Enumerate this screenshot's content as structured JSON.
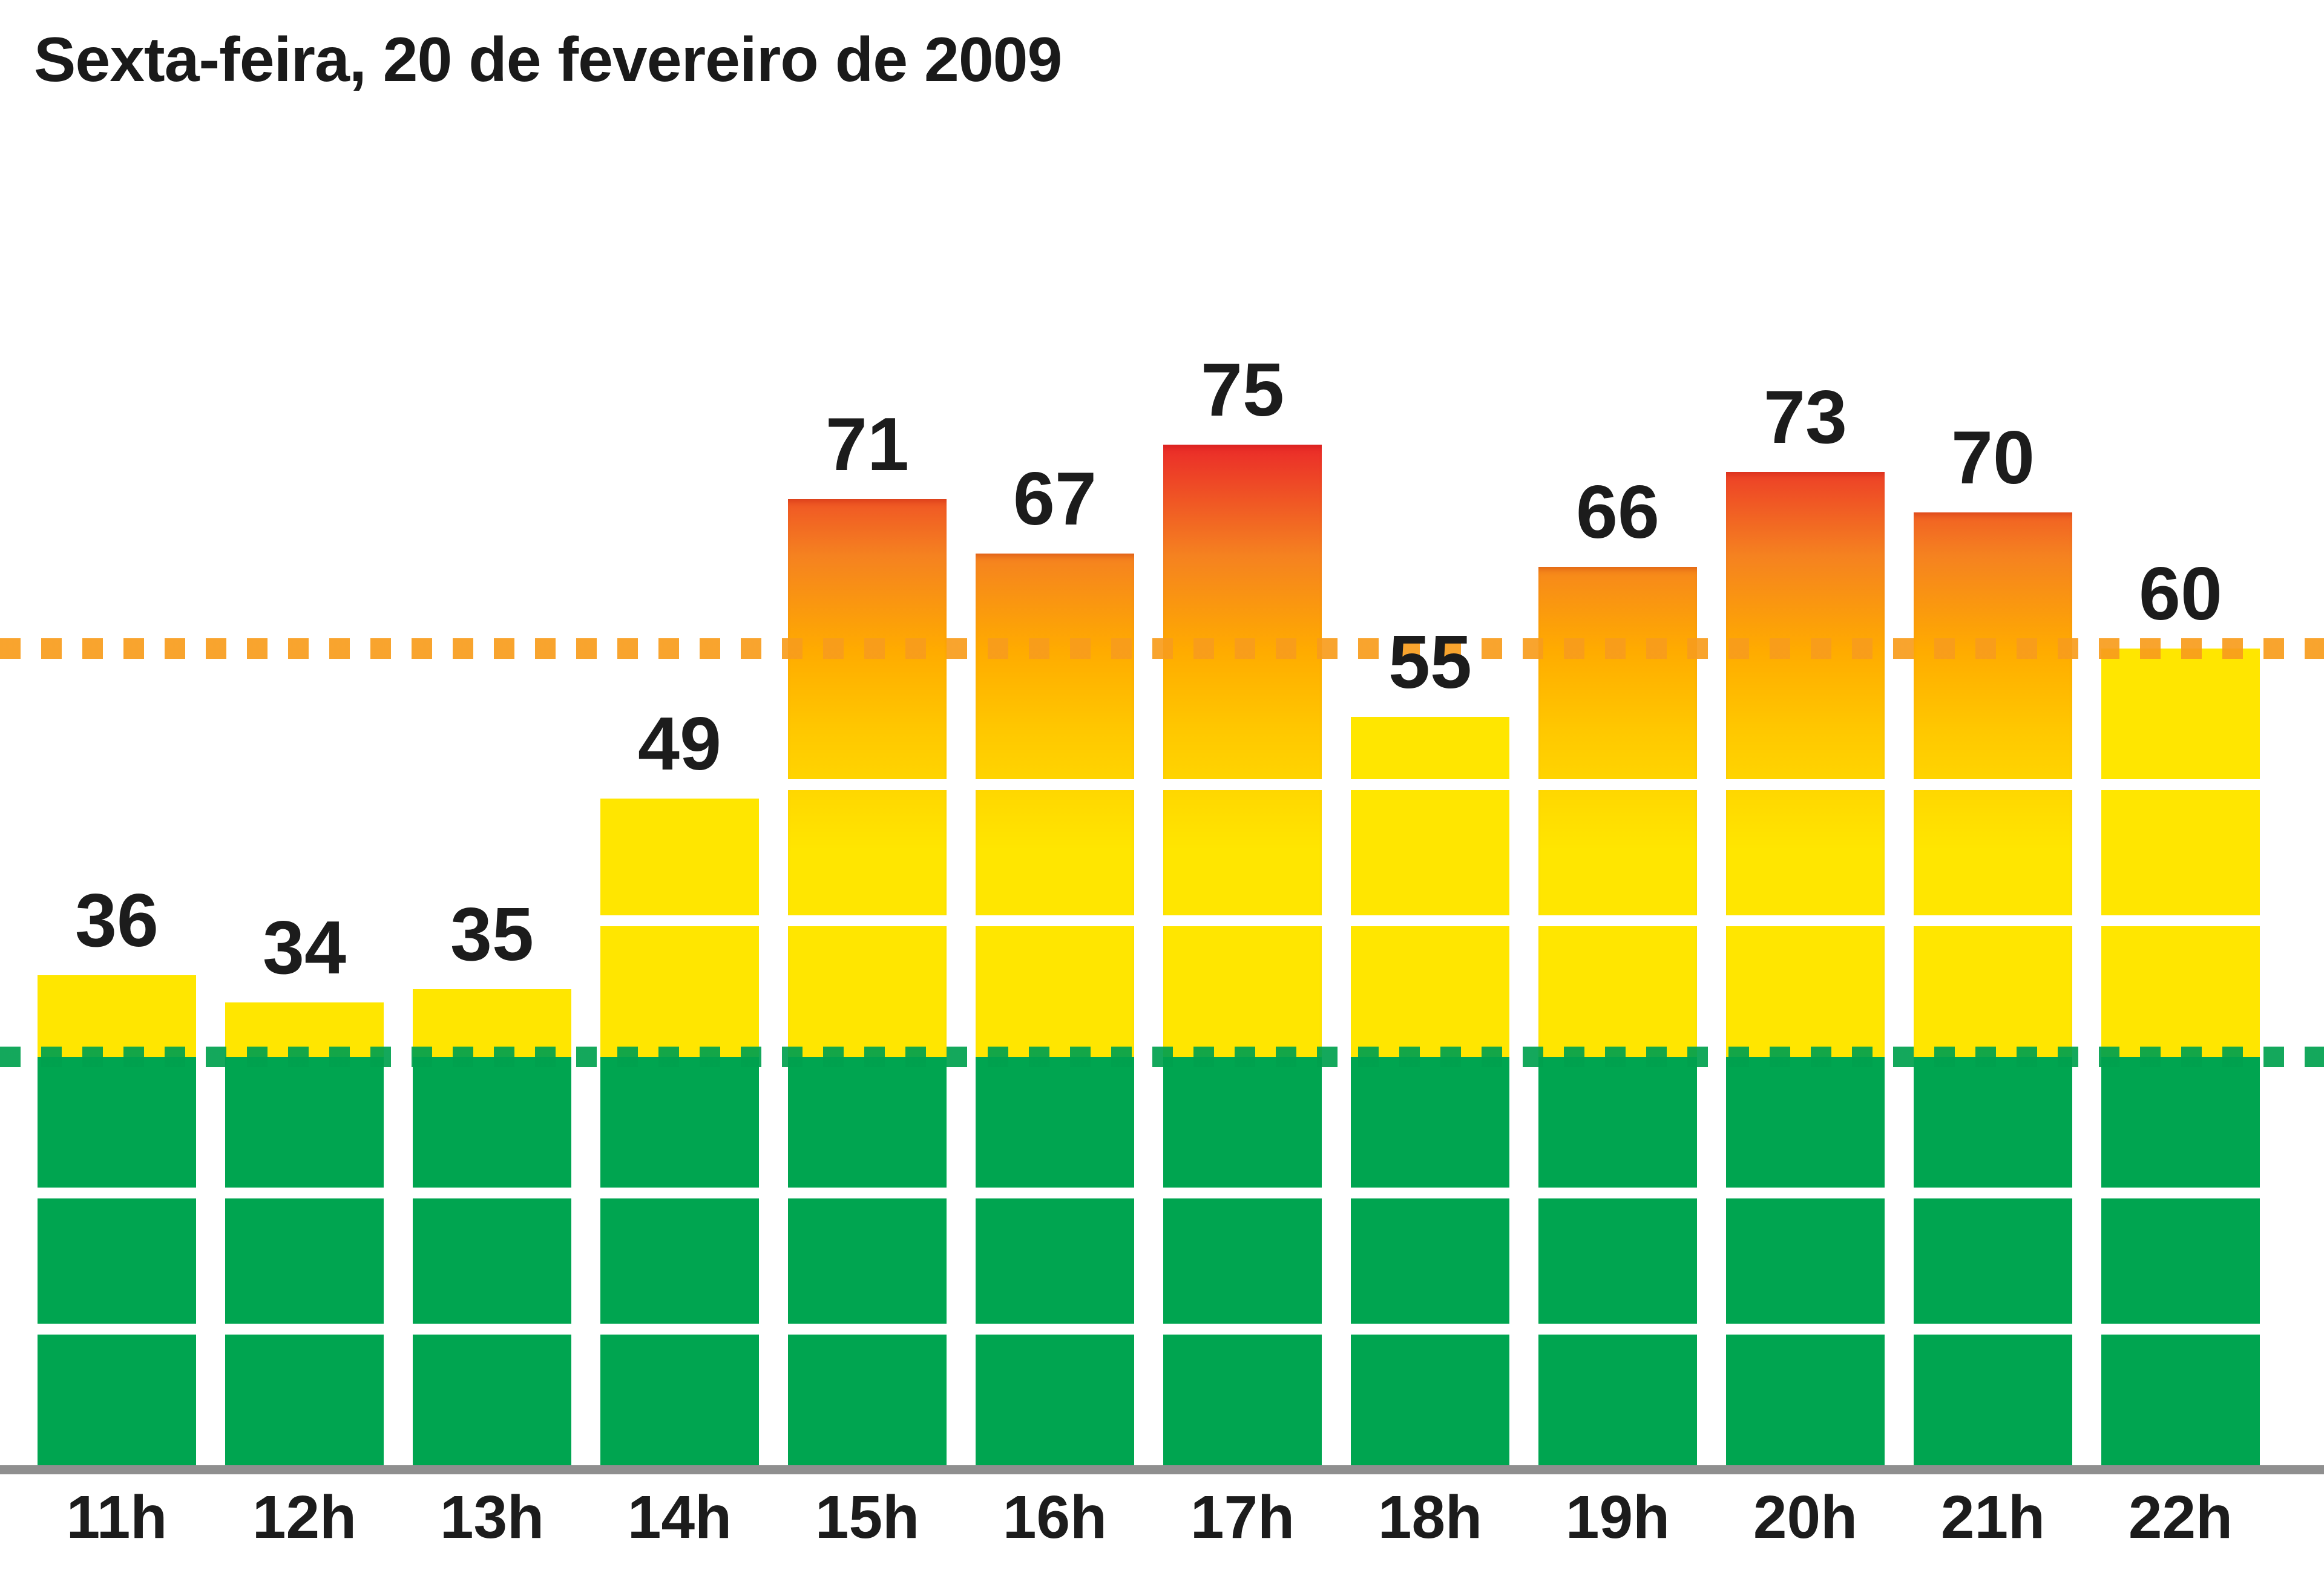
{
  "title": "Sexta-feira, 20 de fevereiro de 2009",
  "chart_data": {
    "type": "bar",
    "title": "Sexta-feira, 20 de fevereiro de 2009",
    "categories": [
      "11h",
      "12h",
      "13h",
      "14h",
      "15h",
      "16h",
      "17h",
      "18h",
      "19h",
      "20h",
      "21h",
      "22h"
    ],
    "values": [
      36,
      34,
      35,
      49,
      71,
      67,
      75,
      55,
      66,
      73,
      70,
      60
    ],
    "xlabel": "",
    "ylabel": "",
    "ylim": [
      0,
      76
    ],
    "grid": "white lines inside bars every 10 units",
    "gridlines": [
      10,
      20,
      40,
      50
    ],
    "legend_position": "none",
    "value_labels_shown": true,
    "thresholds": {
      "green_dotted_line": 30,
      "orange_dotted_line": 60
    },
    "colors": {
      "green_zone": "#00a550",
      "yellow_zone": "#ffe600",
      "orange_top": "#f58220",
      "red_top": "#e9202a",
      "green_dotted": "#00a14e",
      "orange_dotted": "#f89c1c",
      "baseline": "#8f8f8f",
      "label_text": "#1c1c1c"
    }
  }
}
